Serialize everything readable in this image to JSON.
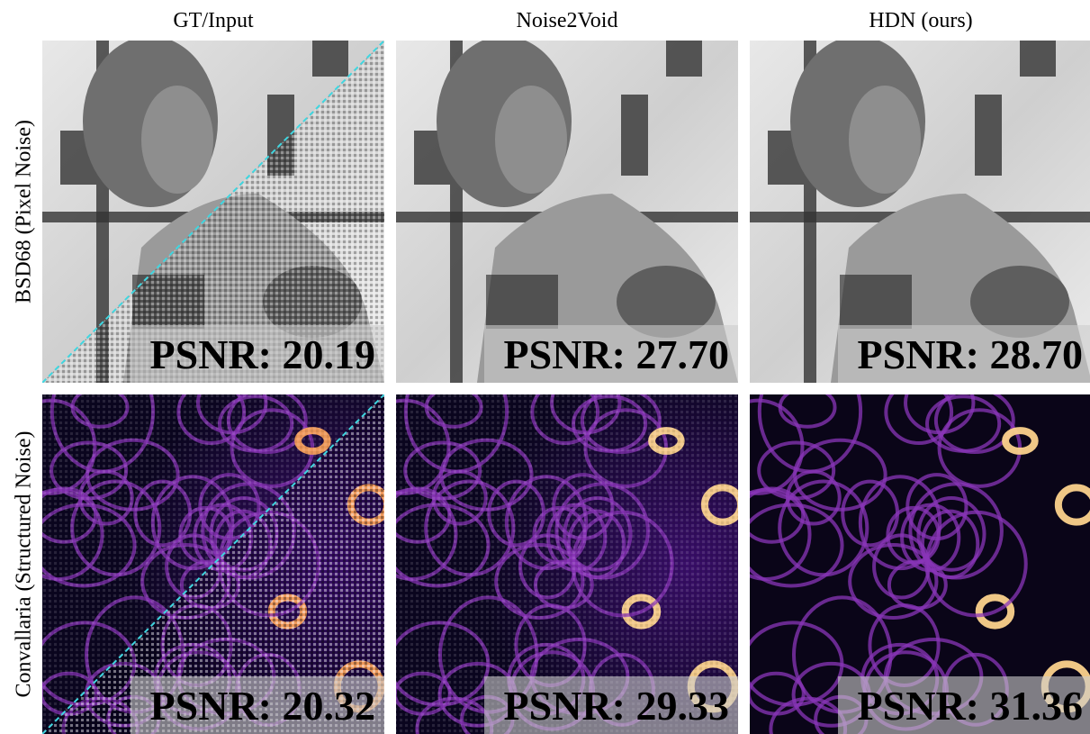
{
  "columns": [
    "GT/Input",
    "Noise2Void",
    "HDN (ours)"
  ],
  "rows": [
    {
      "label": "BSD68 (Pixel Noise)",
      "psnr": [
        "PSNR: 20.19",
        "PSNR: 27.70",
        "PSNR: 28.70"
      ]
    },
    {
      "label": "Convallaria (Structured Noise)",
      "psnr": [
        "PSNR: 20.32",
        "PSNR: 29.33",
        "PSNR: 31.36"
      ]
    }
  ]
}
